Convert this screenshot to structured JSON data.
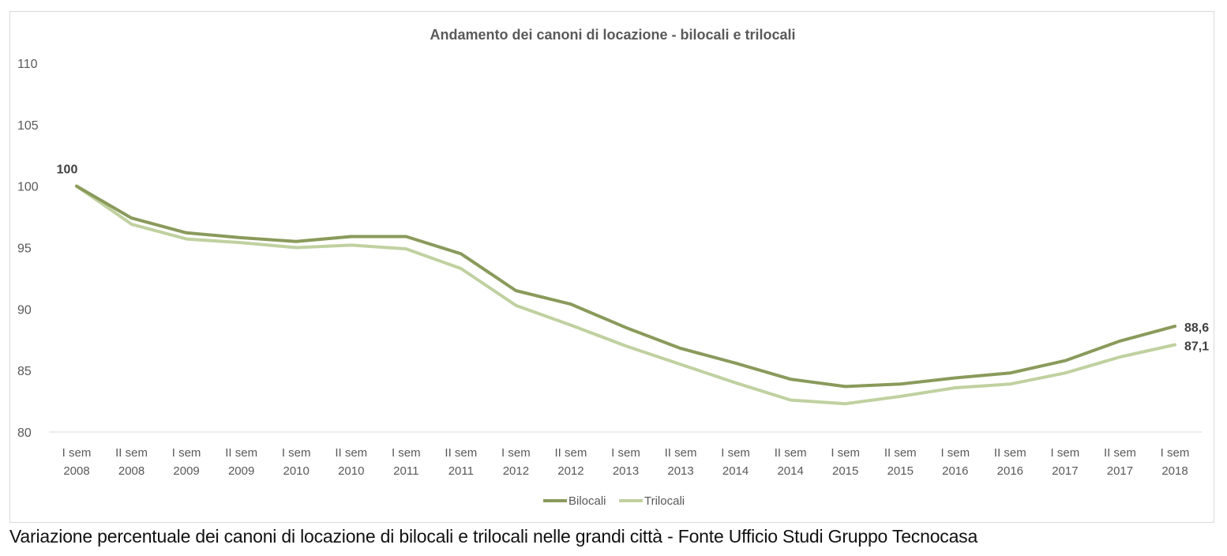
{
  "chart_data": {
    "type": "line",
    "title": "Andamento dei canoni di locazione - bilocali e trilocali",
    "xlabel": "",
    "ylabel": "",
    "ylim": [
      80,
      110
    ],
    "yticks": [
      "80",
      "85",
      "90",
      "95",
      "100",
      "105",
      "110"
    ],
    "grid": false,
    "legend_position": "bottom",
    "categories": [
      [
        "I sem",
        "2008"
      ],
      [
        "II sem",
        "2008"
      ],
      [
        "I sem",
        "2009"
      ],
      [
        "II sem",
        "2009"
      ],
      [
        "I sem",
        "2010"
      ],
      [
        "II sem",
        "2010"
      ],
      [
        "I sem",
        "2011"
      ],
      [
        "II sem",
        "2011"
      ],
      [
        "I sem",
        "2012"
      ],
      [
        "II sem",
        "2012"
      ],
      [
        "I sem",
        "2013"
      ],
      [
        "II sem",
        "2013"
      ],
      [
        "I sem",
        "2014"
      ],
      [
        "II sem",
        "2014"
      ],
      [
        "I sem",
        "2015"
      ],
      [
        "II sem",
        "2015"
      ],
      [
        "I sem",
        "2016"
      ],
      [
        "II sem",
        "2016"
      ],
      [
        "I sem",
        "2017"
      ],
      [
        "II sem",
        "2017"
      ],
      [
        "I sem",
        "2018"
      ]
    ],
    "series": [
      {
        "name": "Bilocali",
        "color": "#8a9a5b",
        "values": [
          100,
          97.4,
          96.2,
          95.8,
          95.5,
          95.9,
          95.9,
          94.5,
          91.5,
          90.4,
          88.5,
          86.8,
          85.6,
          84.3,
          83.7,
          83.9,
          84.4,
          84.8,
          85.8,
          87.4,
          88.6
        ]
      },
      {
        "name": "Trilocali",
        "color": "#c0d1a0",
        "values": [
          100,
          96.9,
          95.7,
          95.4,
          95.0,
          95.2,
          94.9,
          93.3,
          90.3,
          88.7,
          87.0,
          85.5,
          84.0,
          82.6,
          82.3,
          82.9,
          83.6,
          83.9,
          84.8,
          86.1,
          87.1
        ]
      }
    ],
    "data_labels": [
      {
        "series": "Bilocali",
        "index": 0,
        "text": "100"
      },
      {
        "series": "Bilocali",
        "index": 20,
        "text": "88,6"
      },
      {
        "series": "Trilocali",
        "index": 20,
        "text": "87,1"
      }
    ]
  },
  "caption": "Variazione percentuale dei canoni di locazione di bilocali e trilocali nelle grandi città - Fonte Ufficio Studi Gruppo Tecnocasa"
}
